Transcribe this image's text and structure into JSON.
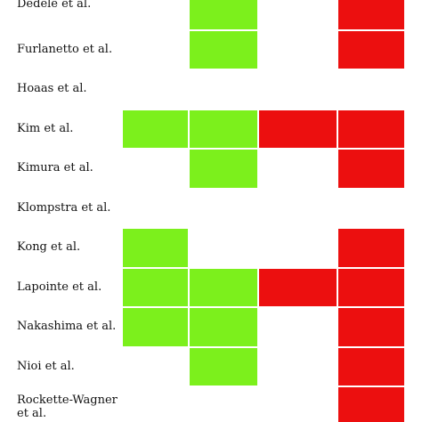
{
  "colors": {
    "green": "#7cf01c",
    "red": "#ec0f0f",
    "border": "#ffffff"
  },
  "chart_data": {
    "type": "heatmap",
    "title": "",
    "xlabel": "",
    "ylabel": "",
    "legend": "none",
    "grid": false,
    "columns": 4,
    "rows": [
      {
        "label": "Dêdelė et al.",
        "cells": [
          "",
          "green",
          "",
          "red"
        ]
      },
      {
        "label": "Furlanetto et al.",
        "cells": [
          "",
          "green",
          "",
          "red"
        ]
      },
      {
        "label": "Hoaas et al.",
        "cells": [
          "",
          "",
          "",
          ""
        ]
      },
      {
        "label": "Kim et al.",
        "cells": [
          "green",
          "green",
          "red",
          "red"
        ]
      },
      {
        "label": "Kimura et al.",
        "cells": [
          "",
          "green",
          "",
          "red"
        ]
      },
      {
        "label": "Klompstra et al.",
        "cells": [
          "",
          "",
          "",
          ""
        ]
      },
      {
        "label": "Kong et al.",
        "cells": [
          "green",
          "",
          "",
          "red"
        ]
      },
      {
        "label": "Lapointe et al.",
        "cells": [
          "green",
          "green",
          "red",
          "red"
        ]
      },
      {
        "label": "Nakashima et al.",
        "cells": [
          "green",
          "green",
          "",
          "red"
        ]
      },
      {
        "label": "Nioi et al.",
        "cells": [
          "",
          "green",
          "",
          "red"
        ]
      },
      {
        "label": "Rockette-Wagner et al.",
        "cells": [
          "",
          "",
          "",
          "red"
        ]
      }
    ]
  }
}
